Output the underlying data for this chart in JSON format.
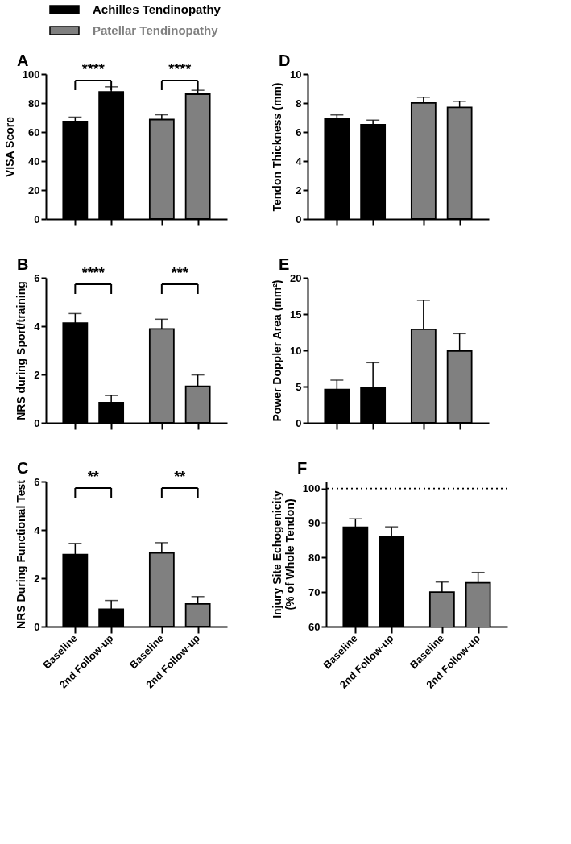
{
  "chart_data": [
    {
      "type": "bar",
      "title": "A",
      "ylabel": "VISA Score",
      "categories": [
        null,
        null,
        null,
        null
      ],
      "ylim": [
        0,
        100
      ],
      "yticks": [
        0,
        20,
        40,
        60,
        80,
        100
      ],
      "tick_labels": "y",
      "legend": "top",
      "annotations": [
        "****",
        "****"
      ],
      "series": [
        {
          "name": "Achilles Tendinopathy",
          "color": "#000000",
          "values": [
            67.3,
            87.7,
            null,
            null
          ],
          "errors": [
            [
              67.3,
              70.3
            ],
            [
              87.7,
              91.2
            ],
            null,
            null
          ]
        },
        {
          "name": "Patellar Tendinopathy",
          "color": "#808080",
          "values": [
            null,
            null,
            68.6,
            86.1
          ],
          "errors": [
            null,
            null,
            [
              68.6,
              71.9
            ],
            [
              86.1,
              88.8
            ]
          ]
        }
      ]
    },
    {
      "type": "bar",
      "title": "D",
      "ylabel": "Tendon Thickness (mm)",
      "categories": [
        null,
        null,
        null,
        null
      ],
      "ylim": [
        0,
        10
      ],
      "yticks": [
        0,
        2,
        4,
        6,
        8,
        10
      ],
      "tick_labels": "y",
      "series": [
        {
          "color": "#000000",
          "values": [
            6.92,
            6.5,
            null,
            null
          ],
          "errors": [
            [
              6.92,
              7.18
            ],
            [
              6.5,
              6.82
            ],
            null,
            null
          ]
        },
        {
          "color": "#808080",
          "values": [
            null,
            null,
            8.01,
            7.7
          ],
          "errors": [
            null,
            null,
            [
              8.01,
              8.4
            ],
            [
              7.7,
              8.12
            ]
          ]
        }
      ]
    },
    {
      "type": "bar",
      "title": "B",
      "ylabel": "NRS during Sport/training",
      "categories": [
        null,
        null,
        null,
        null
      ],
      "ylim": [
        0,
        6
      ],
      "yticks": [
        0,
        2,
        4,
        6
      ],
      "tick_labels": "y",
      "annotations": [
        "****",
        "***"
      ],
      "series": [
        {
          "color": "#000000",
          "values": [
            4.13,
            0.84,
            null,
            null
          ],
          "errors": [
            [
              4.13,
              4.52
            ],
            [
              0.84,
              1.13
            ],
            null,
            null
          ]
        },
        {
          "color": "#808080",
          "values": [
            null,
            null,
            3.89,
            1.51
          ],
          "errors": [
            null,
            null,
            [
              3.89,
              4.29
            ],
            [
              1.51,
              1.98
            ]
          ]
        }
      ]
    },
    {
      "type": "bar",
      "title": "E",
      "ylabel": "Power Doppler Area  (mm²)",
      "categories": [
        null,
        null,
        null,
        null
      ],
      "ylim": [
        0,
        20
      ],
      "yticks": [
        0,
        5,
        10,
        15,
        20
      ],
      "tick_labels": "y",
      "series": [
        {
          "color": "#000000",
          "values": [
            4.6,
            4.9,
            null,
            null
          ],
          "errors": [
            [
              4.6,
              5.9
            ],
            [
              4.9,
              8.3
            ],
            null,
            null
          ]
        },
        {
          "color": "#808080",
          "values": [
            null,
            null,
            12.9,
            9.9
          ],
          "errors": [
            null,
            null,
            [
              12.9,
              16.9
            ],
            [
              9.9,
              12.3
            ]
          ]
        }
      ]
    },
    {
      "type": "bar",
      "title": "C",
      "ylabel": "NRS During Functional Test",
      "categories": [
        "Baseline",
        "2nd Follow-up",
        "Baseline",
        "2nd Follow-up"
      ],
      "ylim": [
        0,
        6
      ],
      "yticks": [
        0,
        2,
        4,
        6
      ],
      "annotations": [
        "**",
        "**"
      ],
      "series": [
        {
          "color": "#000000",
          "values": [
            2.98,
            0.72,
            null,
            null
          ],
          "errors": [
            [
              2.98,
              3.44
            ],
            [
              0.72,
              1.08
            ],
            null,
            null
          ]
        },
        {
          "color": "#808080",
          "values": [
            null,
            null,
            3.05,
            0.94
          ],
          "errors": [
            null,
            null,
            [
              3.05,
              3.47
            ],
            [
              0.94,
              1.24
            ]
          ]
        }
      ]
    },
    {
      "type": "bar",
      "title": "F",
      "ylabel": "Injury Site Echogenicity\n(% of Whole Tendon)",
      "categories": [
        "Baseline",
        "2nd Follow-up",
        "Baseline",
        "2nd Follow-up"
      ],
      "ylim": [
        60,
        102
      ],
      "yticks": [
        60,
        70,
        80,
        90,
        100
      ],
      "ref_lines": [
        {
          "axis": "y",
          "value": 100,
          "line_style": "dotted"
        }
      ],
      "series": [
        {
          "color": "#000000",
          "values": [
            88.8,
            86.0,
            null,
            null
          ],
          "errors": [
            [
              88.8,
              91.2
            ],
            [
              86.0,
              88.9
            ],
            null,
            null
          ]
        },
        {
          "color": "#808080",
          "values": [
            null,
            null,
            70.0,
            72.7
          ],
          "errors": [
            null,
            null,
            [
              70.0,
              72.9
            ],
            [
              72.7,
              75.7
            ]
          ]
        }
      ]
    }
  ]
}
